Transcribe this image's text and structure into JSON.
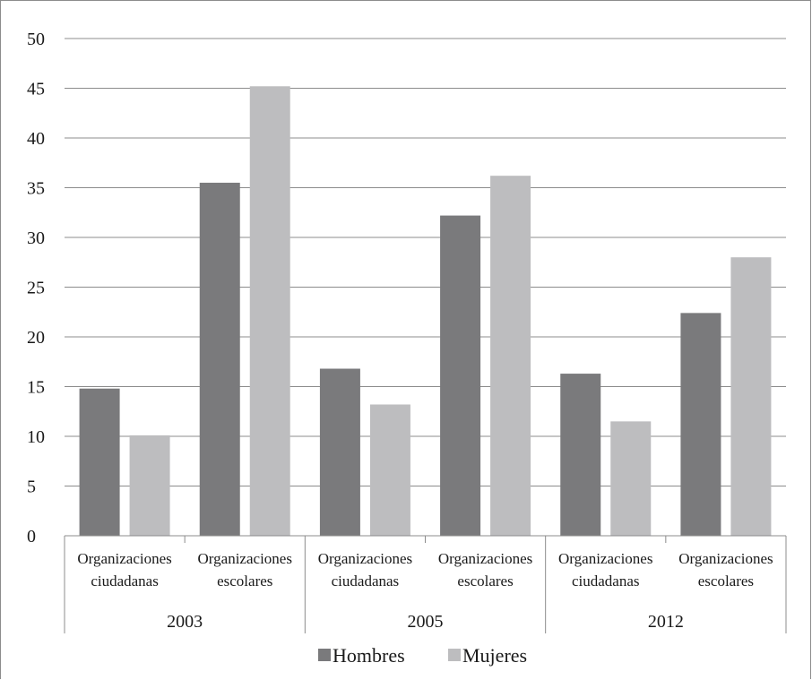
{
  "chart_data": {
    "type": "bar",
    "title": "",
    "xlabel": "",
    "ylabel": "",
    "ylim": [
      0,
      50
    ],
    "yticks": [
      "0",
      "5",
      "10",
      "15",
      "20",
      "25",
      "30",
      "35",
      "40",
      "45",
      "50"
    ],
    "grid": true,
    "legend_position": "bottom",
    "groups": [
      {
        "label": "2003",
        "categories": [
          "Organizaciones ciudadanas",
          "Organizaciones escolares"
        ]
      },
      {
        "label": "2005",
        "categories": [
          "Organizaciones ciudadanas",
          "Organizaciones escolares"
        ]
      },
      {
        "label": "2012",
        "categories": [
          "Organizaciones ciudadanas",
          "Organizaciones escolares"
        ]
      }
    ],
    "category_lines": [
      [
        "Organizaciones",
        "ciudadanas"
      ],
      [
        "Organizaciones",
        "escolares"
      ],
      [
        "Organizaciones",
        "ciudadanas"
      ],
      [
        "Organizaciones",
        "escolares"
      ],
      [
        "Organizaciones",
        "ciudadanas"
      ],
      [
        "Organizaciones",
        "escolares"
      ]
    ],
    "series": [
      {
        "name": "Hombres",
        "color": "#7a7a7c",
        "values": [
          14.8,
          35.5,
          16.8,
          32.2,
          16.3,
          22.4
        ]
      },
      {
        "name": "Mujeres",
        "color": "#bdbdbf",
        "values": [
          10.1,
          45.2,
          13.2,
          36.2,
          11.5,
          28.0
        ]
      }
    ]
  }
}
